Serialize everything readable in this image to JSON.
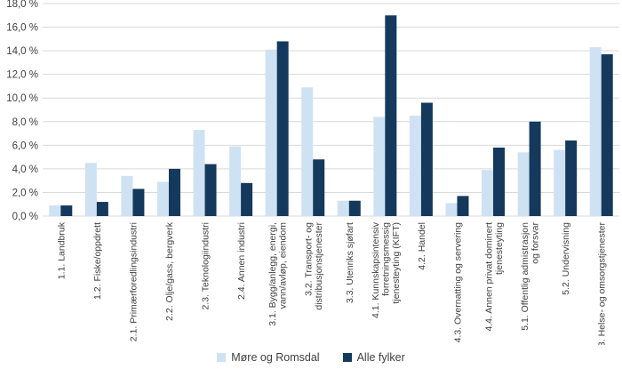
{
  "chart_data": {
    "type": "bar",
    "title": "",
    "xlabel": "",
    "ylabel": "",
    "ylim": [
      0,
      18
    ],
    "ytick_step": 2,
    "ytick_labels": [
      "0,0 %",
      "2,0 %",
      "4,0 %",
      "6,0 %",
      "8,0 %",
      "10,0 %",
      "12,0 %",
      "14,0 %",
      "16,0 %",
      "18,0 %"
    ],
    "grid": true,
    "legend_position": "bottom-center",
    "categories": [
      "1.1. Landbruk",
      "1.2. Fiske/oppdrett",
      "2.1. Primærforedlingsindustri",
      "2.2. Olje/gass, bergverk",
      "2.3. Teknologiindustri",
      "2.4. Annen industri",
      "3.1. Bygg/anlegg, energi, vann/avløp, eiendom",
      "3.2. Transport- og distribusjonstjenester",
      "3.3. Utenriks sjøfart",
      "4.1. Kunnskapsintensiv forretningsmessig tjenesteyting (KIFT)",
      "4.2. Handel",
      "4.3. Overnatting og servering",
      "4.4. Annen privat dominert tjenesteyting",
      "5.1. Offentlig admistrasjon og forsvar",
      "5.2. Undervisning",
      "5.3. Helse- og omsorgstjenester"
    ],
    "category_lines": [
      [
        "1.1. Landbruk"
      ],
      [
        "1.2. Fiske/oppdrett"
      ],
      [
        "2.1. Primærforedlingsindustri"
      ],
      [
        "2.2. Olje/gass, bergverk"
      ],
      [
        "2.3. Teknologiindustri"
      ],
      [
        "2.4. Annen industri"
      ],
      [
        "3.1. Bygg/anlegg, energi,",
        "vann/avløp, eiendom"
      ],
      [
        "3.2. Transport- og",
        "distribusjonstjenester"
      ],
      [
        "3.3. Utenriks sjøfart"
      ],
      [
        "4.1. Kunnskapsintensiv",
        "forretningsmessig",
        "tjenesteyting (KIFT)"
      ],
      [
        "4.2. Handel"
      ],
      [
        "4.3. Overnatting og servering"
      ],
      [
        "4.4. Annen privat dominert",
        "tjenesteyting"
      ],
      [
        "5.1. Offentlig admistrasjon",
        "og forsvar"
      ],
      [
        "5.2. Undervisning"
      ],
      [
        "5.3. Helse- og omsorgstjenester"
      ]
    ],
    "series": [
      {
        "name": "Møre og Romsdal",
        "color": "#cfe2f3",
        "values": [
          0.9,
          4.5,
          3.4,
          2.9,
          7.3,
          5.9,
          14.1,
          10.9,
          1.3,
          8.4,
          8.5,
          1.1,
          3.9,
          5.4,
          5.6,
          14.3
        ]
      },
      {
        "name": "Alle fylker",
        "color": "#14395c",
        "values": [
          0.9,
          1.2,
          2.3,
          4.0,
          4.4,
          2.8,
          14.8,
          4.8,
          1.3,
          17.0,
          9.6,
          1.7,
          5.8,
          8.0,
          6.4,
          13.7
        ]
      }
    ],
    "colors": {
      "grid": "#d9d9d9",
      "axis_text": "#404040"
    }
  }
}
